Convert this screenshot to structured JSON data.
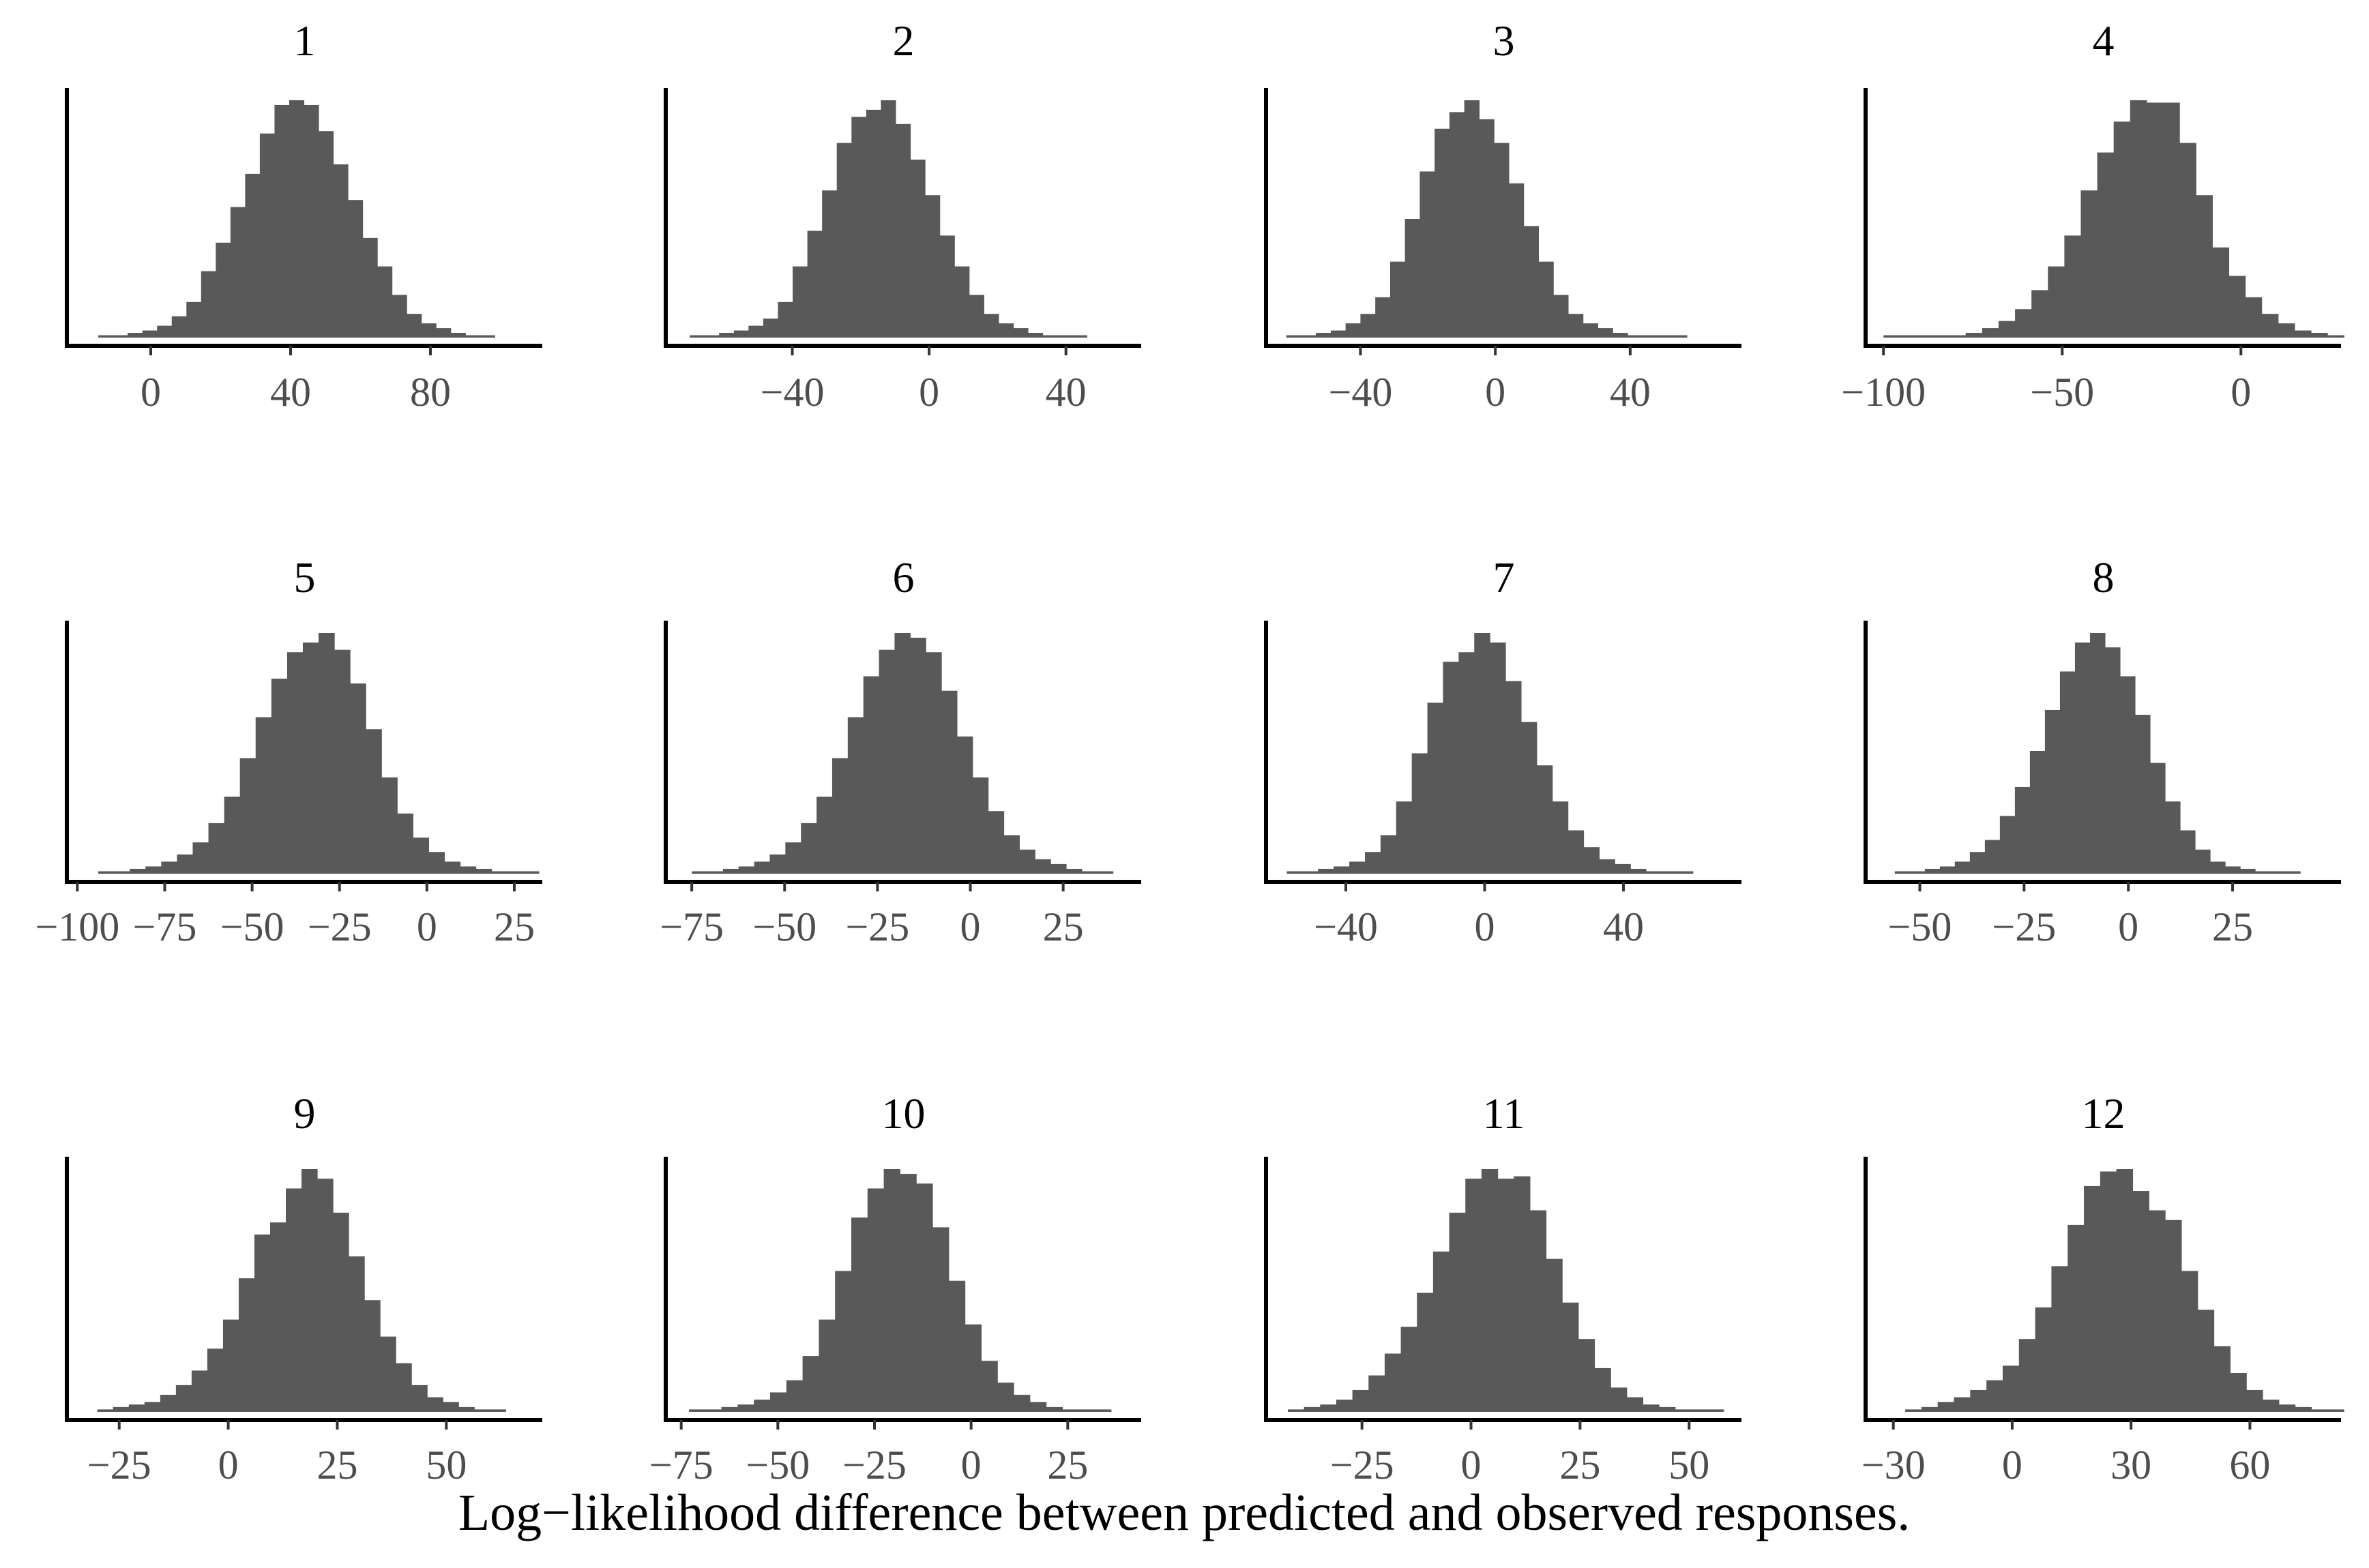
{
  "figure": {
    "xlabel": "Log−likelihood difference between predicted and observed responses.",
    "bar_color": "#595959",
    "background": "#ffffff"
  },
  "chart_data": [
    {
      "type": "bar",
      "title": "1",
      "xlim": [
        -24,
        112
      ],
      "ticks": [
        0,
        40,
        80
      ],
      "tick_labels": [
        "0",
        "40",
        "80"
      ],
      "bin_start": -15,
      "bin_width": 4.2,
      "values": [
        0.01,
        0.01,
        0.02,
        0.03,
        0.05,
        0.09,
        0.15,
        0.28,
        0.4,
        0.55,
        0.69,
        0.86,
        0.98,
        1.0,
        0.98,
        0.87,
        0.73,
        0.58,
        0.42,
        0.3,
        0.18,
        0.1,
        0.06,
        0.04,
        0.02,
        0.01,
        0.01
      ]
    },
    {
      "type": "bar",
      "title": "2",
      "xlim": [
        -77,
        62
      ],
      "ticks": [
        -40,
        0,
        40
      ],
      "tick_labels": [
        "−40",
        "0",
        "40"
      ],
      "bin_start": -70,
      "bin_width": 4.3,
      "values": [
        0.01,
        0.01,
        0.02,
        0.03,
        0.05,
        0.08,
        0.15,
        0.3,
        0.45,
        0.62,
        0.82,
        0.93,
        0.96,
        1.0,
        0.9,
        0.75,
        0.6,
        0.43,
        0.3,
        0.18,
        0.1,
        0.06,
        0.04,
        0.02,
        0.01,
        0.01,
        0.01
      ]
    },
    {
      "type": "bar",
      "title": "3",
      "xlim": [
        -68,
        73
      ],
      "ticks": [
        -40,
        0,
        40
      ],
      "tick_labels": [
        "−40",
        "0",
        "40"
      ],
      "bin_start": -62,
      "bin_width": 4.4,
      "values": [
        0.01,
        0.01,
        0.02,
        0.03,
        0.06,
        0.1,
        0.17,
        0.32,
        0.5,
        0.7,
        0.88,
        0.95,
        1.0,
        0.92,
        0.82,
        0.65,
        0.47,
        0.32,
        0.18,
        0.1,
        0.06,
        0.04,
        0.02,
        0.01,
        0.01,
        0.01,
        0.01
      ]
    },
    {
      "type": "bar",
      "title": "4",
      "xlim": [
        -105,
        28
      ],
      "ticks": [
        -100,
        -50,
        0
      ],
      "tick_labels": [
        "−100",
        "−50",
        "0"
      ],
      "bin_start": -100,
      "bin_width": 4.6,
      "values": [
        0.01,
        0.01,
        0.01,
        0.01,
        0.01,
        0.02,
        0.04,
        0.07,
        0.12,
        0.2,
        0.3,
        0.43,
        0.62,
        0.78,
        0.91,
        1.0,
        0.99,
        0.99,
        0.82,
        0.6,
        0.38,
        0.26,
        0.17,
        0.1,
        0.06,
        0.03,
        0.02,
        0.01
      ]
    },
    {
      "type": "bar",
      "title": "5",
      "xlim": [
        -103,
        33
      ],
      "ticks": [
        -100,
        -75,
        -50,
        -25,
        0,
        25
      ],
      "tick_labels": [
        "−100",
        "−75",
        "−50",
        "−25",
        "0",
        "25"
      ],
      "bin_start": -94,
      "bin_width": 4.5,
      "values": [
        0.01,
        0.01,
        0.02,
        0.03,
        0.05,
        0.08,
        0.13,
        0.21,
        0.32,
        0.48,
        0.65,
        0.81,
        0.92,
        0.96,
        1.0,
        0.93,
        0.79,
        0.6,
        0.4,
        0.25,
        0.15,
        0.09,
        0.05,
        0.03,
        0.02,
        0.01,
        0.01,
        0.01
      ]
    },
    {
      "type": "bar",
      "title": "6",
      "xlim": [
        -82,
        46
      ],
      "ticks": [
        -75,
        -50,
        -25,
        0,
        25
      ],
      "tick_labels": [
        "−75",
        "−50",
        "−25",
        "0",
        "25"
      ],
      "bin_start": -75,
      "bin_width": 4.2,
      "values": [
        0.01,
        0.01,
        0.02,
        0.03,
        0.05,
        0.08,
        0.13,
        0.21,
        0.32,
        0.48,
        0.65,
        0.82,
        0.93,
        1.0,
        0.98,
        0.92,
        0.76,
        0.57,
        0.4,
        0.26,
        0.16,
        0.1,
        0.06,
        0.04,
        0.02,
        0.01,
        0.01
      ]
    },
    {
      "type": "bar",
      "title": "7",
      "xlim": [
        -63,
        74
      ],
      "ticks": [
        -40,
        0,
        40
      ],
      "tick_labels": [
        "−40",
        "0",
        "40"
      ],
      "bin_start": -57,
      "bin_width": 4.5,
      "values": [
        0.01,
        0.01,
        0.02,
        0.03,
        0.05,
        0.09,
        0.16,
        0.3,
        0.5,
        0.71,
        0.88,
        0.92,
        1.0,
        0.96,
        0.8,
        0.63,
        0.45,
        0.3,
        0.18,
        0.11,
        0.06,
        0.04,
        0.02,
        0.01,
        0.01,
        0.01
      ]
    },
    {
      "type": "bar",
      "title": "8",
      "xlim": [
        -63,
        51
      ],
      "ticks": [
        -50,
        -25,
        0,
        25
      ],
      "tick_labels": [
        "−50",
        "−25",
        "0",
        "25"
      ],
      "bin_start": -56,
      "bin_width": 3.6,
      "values": [
        0.01,
        0.01,
        0.02,
        0.03,
        0.05,
        0.09,
        0.14,
        0.24,
        0.36,
        0.51,
        0.68,
        0.84,
        0.96,
        1.0,
        0.94,
        0.82,
        0.66,
        0.46,
        0.3,
        0.18,
        0.1,
        0.05,
        0.03,
        0.02,
        0.01,
        0.01,
        0.01
      ]
    },
    {
      "type": "bar",
      "title": "9",
      "xlim": [
        -37,
        72
      ],
      "ticks": [
        -25,
        0,
        25,
        50
      ],
      "tick_labels": [
        "−25",
        "0",
        "25",
        "50"
      ],
      "bin_start": -30,
      "bin_width": 3.6,
      "values": [
        0.01,
        0.02,
        0.03,
        0.04,
        0.07,
        0.11,
        0.17,
        0.26,
        0.38,
        0.55,
        0.73,
        0.78,
        0.92,
        1.0,
        0.96,
        0.82,
        0.64,
        0.46,
        0.31,
        0.2,
        0.11,
        0.06,
        0.04,
        0.02,
        0.01,
        0.01
      ]
    },
    {
      "type": "bar",
      "title": "10",
      "xlim": [
        -79,
        44
      ],
      "ticks": [
        -75,
        -50,
        -25,
        0,
        25
      ],
      "tick_labels": [
        "−75",
        "−50",
        "−25",
        "0",
        "25"
      ],
      "bin_start": -73,
      "bin_width": 4.2,
      "values": [
        0.01,
        0.01,
        0.02,
        0.03,
        0.05,
        0.08,
        0.13,
        0.23,
        0.38,
        0.58,
        0.8,
        0.92,
        1.0,
        0.98,
        0.94,
        0.76,
        0.54,
        0.36,
        0.21,
        0.12,
        0.07,
        0.04,
        0.02,
        0.01,
        0.01,
        0.01
      ]
    },
    {
      "type": "bar",
      "title": "11",
      "xlim": [
        -47,
        62
      ],
      "ticks": [
        -25,
        0,
        25,
        50
      ],
      "tick_labels": [
        "−25",
        "0",
        "25",
        "50"
      ],
      "bin_start": -42,
      "bin_width": 3.7,
      "values": [
        0.01,
        0.02,
        0.03,
        0.05,
        0.09,
        0.15,
        0.24,
        0.35,
        0.49,
        0.66,
        0.82,
        0.96,
        1.0,
        0.96,
        0.97,
        0.83,
        0.63,
        0.45,
        0.3,
        0.18,
        0.1,
        0.06,
        0.03,
        0.02,
        0.01,
        0.01,
        0.01
      ]
    },
    {
      "type": "bar",
      "title": "12",
      "xlim": [
        -37,
        83
      ],
      "ticks": [
        -30,
        0,
        30,
        60
      ],
      "tick_labels": [
        "−30",
        "0",
        "30",
        "60"
      ],
      "bin_start": -27,
      "bin_width": 4.1,
      "values": [
        0.01,
        0.02,
        0.04,
        0.06,
        0.09,
        0.13,
        0.19,
        0.3,
        0.43,
        0.6,
        0.77,
        0.93,
        0.99,
        1.0,
        0.91,
        0.83,
        0.79,
        0.58,
        0.42,
        0.27,
        0.16,
        0.09,
        0.05,
        0.03,
        0.02,
        0.01,
        0.01
      ]
    }
  ]
}
